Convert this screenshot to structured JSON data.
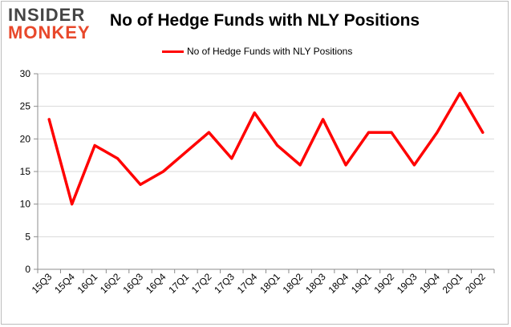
{
  "brand": {
    "line1": "INSIDER",
    "line2": "MONKEY"
  },
  "chart_data": {
    "type": "line",
    "title": "No of Hedge Funds with NLY Positions",
    "legend": "No of Hedge Funds with NLY Positions",
    "legend_position": "top-center",
    "xlabel": "",
    "ylabel": "",
    "categories": [
      "15Q3",
      "15Q4",
      "16Q1",
      "16Q2",
      "16Q3",
      "16Q4",
      "17Q1",
      "17Q2",
      "17Q3",
      "17Q4",
      "18Q1",
      "18Q2",
      "18Q3",
      "18Q4",
      "19Q1",
      "19Q2",
      "19Q3",
      "19Q4",
      "20Q1",
      "20Q2"
    ],
    "series": [
      {
        "name": "No of Hedge Funds with NLY Positions",
        "values": [
          23,
          10,
          19,
          17,
          13,
          15,
          18,
          21,
          17,
          24,
          19,
          16,
          23,
          16,
          21,
          21,
          16,
          21,
          27,
          21
        ]
      }
    ],
    "ylim": [
      0,
      30
    ],
    "yticks": [
      0,
      5,
      10,
      15,
      20,
      25,
      30
    ],
    "grid": "horizontal",
    "line_color": "#ff0000"
  }
}
